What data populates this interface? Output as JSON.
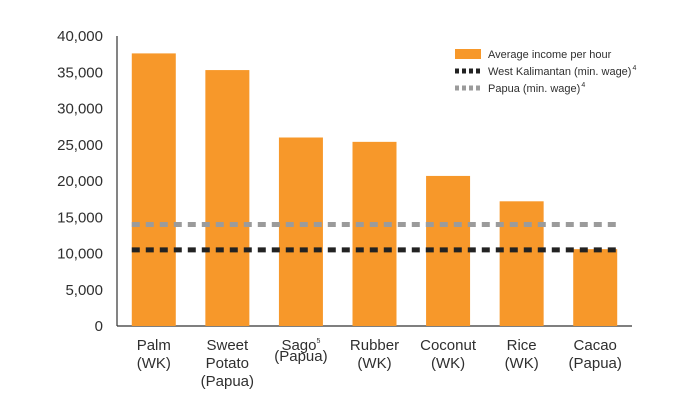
{
  "chart_data": {
    "type": "bar",
    "title": "",
    "xlabel": "",
    "ylabel": "",
    "ylim": [
      0,
      40000
    ],
    "yticks": [
      0,
      5000,
      10000,
      15000,
      20000,
      25000,
      30000,
      35000,
      40000
    ],
    "ytick_labels": [
      "0",
      "5,000",
      "10,000",
      "15,000",
      "20,000",
      "25,000",
      "30,000",
      "35,000",
      "40,000"
    ],
    "categories": [
      {
        "lines": [
          "Palm",
          "(WK)"
        ],
        "sup": ""
      },
      {
        "lines": [
          "Sweet",
          "Potato",
          "(Papua)"
        ],
        "sup": ""
      },
      {
        "lines": [
          "Sago",
          "(Papua)"
        ],
        "sup": "5"
      },
      {
        "lines": [
          "Rubber",
          "(WK)"
        ],
        "sup": ""
      },
      {
        "lines": [
          "Coconut",
          "(WK)"
        ],
        "sup": ""
      },
      {
        "lines": [
          "Rice",
          "(WK)"
        ],
        "sup": ""
      },
      {
        "lines": [
          "Cacao",
          "(Papua)"
        ],
        "sup": ""
      }
    ],
    "series": [
      {
        "name": "Average income per hour",
        "values": [
          37600,
          35300,
          26000,
          25400,
          20700,
          17200,
          10600
        ],
        "color": "#f7982a"
      }
    ],
    "reference_lines": [
      {
        "name": "West Kalimantan (min. wage)",
        "sup": "4",
        "value": 10500,
        "color": "#222222",
        "style": "dashed"
      },
      {
        "name": "Papua (min. wage)",
        "sup": "4",
        "value": 14000,
        "color": "#9b9b9b",
        "style": "dashed"
      }
    ],
    "grid": false,
    "legend_position": "top-right"
  }
}
